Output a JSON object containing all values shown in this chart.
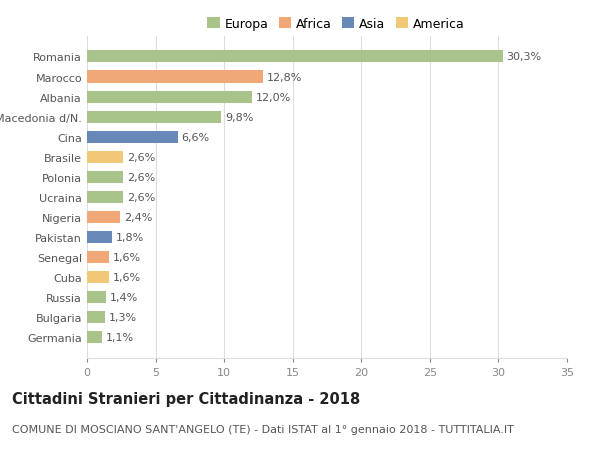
{
  "title": "Cittadini Stranieri per Cittadinanza - 2018",
  "subtitle": "COMUNE DI MOSCIANO SANT'ANGELO (TE) - Dati ISTAT al 1° gennaio 2018 - TUTTITALIA.IT",
  "categories": [
    "Romania",
    "Marocco",
    "Albania",
    "Macedonia d/N.",
    "Cina",
    "Brasile",
    "Polonia",
    "Ucraina",
    "Nigeria",
    "Pakistan",
    "Senegal",
    "Cuba",
    "Russia",
    "Bulgaria",
    "Germania"
  ],
  "values": [
    30.3,
    12.8,
    12.0,
    9.8,
    6.6,
    2.6,
    2.6,
    2.6,
    2.4,
    1.8,
    1.6,
    1.6,
    1.4,
    1.3,
    1.1
  ],
  "labels": [
    "30,3%",
    "12,8%",
    "12,0%",
    "9,8%",
    "6,6%",
    "2,6%",
    "2,6%",
    "2,6%",
    "2,4%",
    "1,8%",
    "1,6%",
    "1,6%",
    "1,4%",
    "1,3%",
    "1,1%"
  ],
  "colors": [
    "#a8c48a",
    "#f0a878",
    "#a8c48a",
    "#a8c48a",
    "#6888b8",
    "#f0c878",
    "#a8c48a",
    "#a8c48a",
    "#f0a878",
    "#6888b8",
    "#f0a878",
    "#f0c878",
    "#a8c48a",
    "#a8c48a",
    "#a8c48a"
  ],
  "legend_labels": [
    "Europa",
    "Africa",
    "Asia",
    "America"
  ],
  "legend_colors": [
    "#a8c48a",
    "#f0a878",
    "#6888b8",
    "#f0c878"
  ],
  "xlim": [
    0,
    35
  ],
  "xticks": [
    0,
    5,
    10,
    15,
    20,
    25,
    30,
    35
  ],
  "background_color": "#ffffff",
  "grid_color": "#dddddd",
  "bar_height": 0.6,
  "title_fontsize": 10.5,
  "subtitle_fontsize": 8,
  "label_fontsize": 8,
  "tick_fontsize": 8,
  "legend_fontsize": 9
}
